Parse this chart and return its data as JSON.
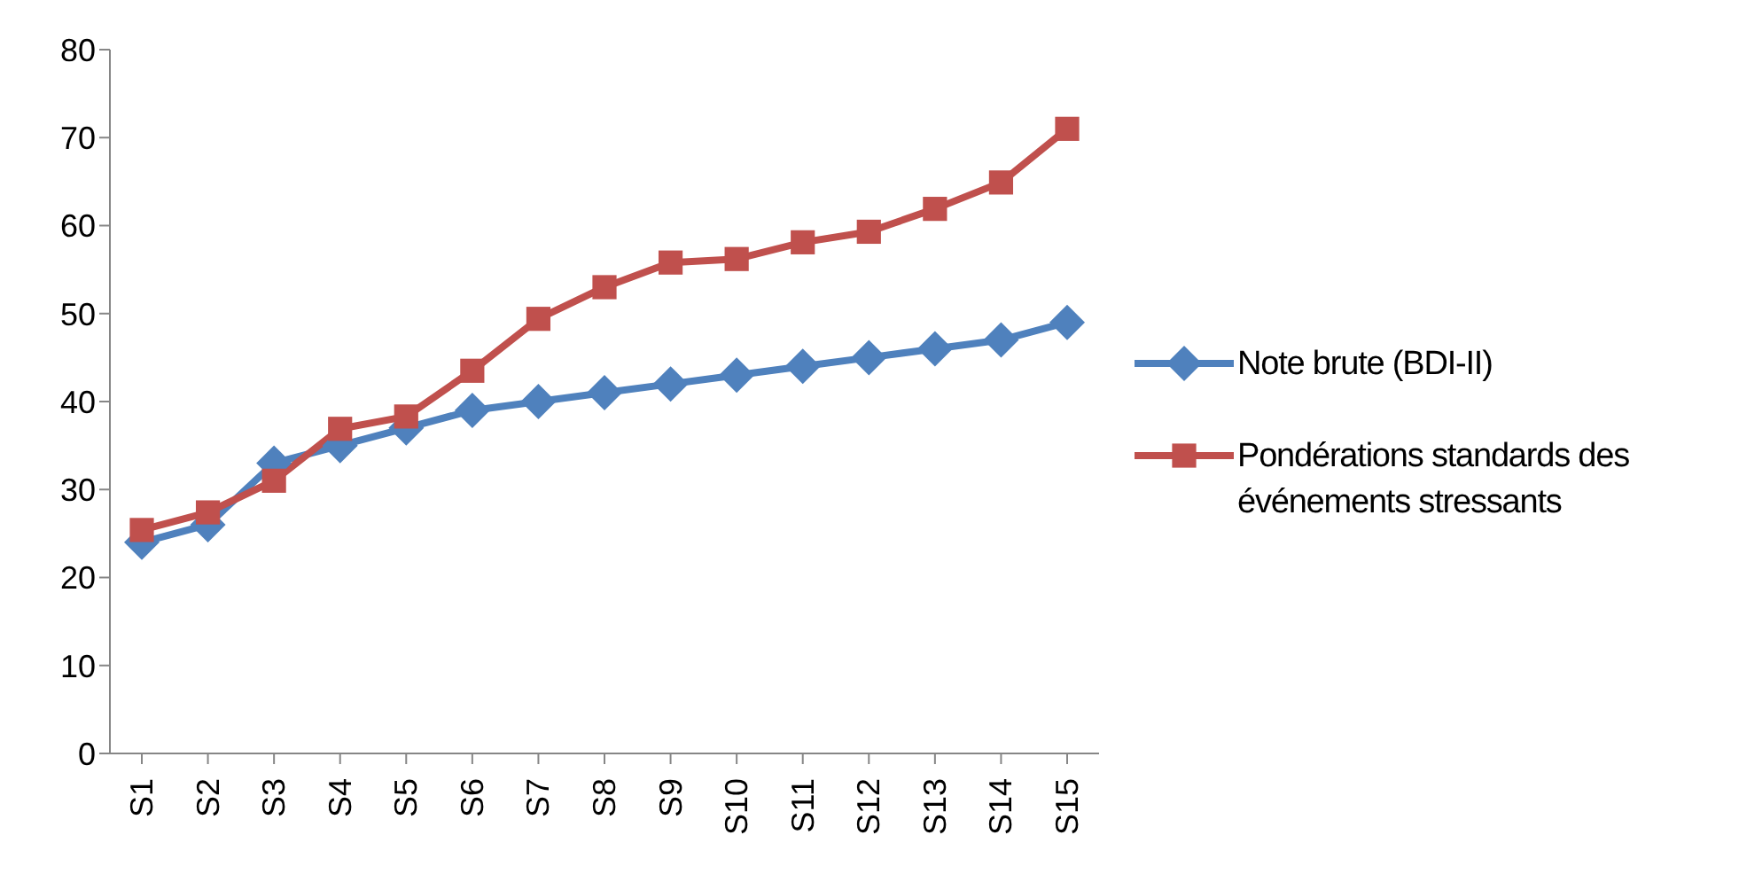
{
  "chart_data": {
    "type": "line",
    "categories": [
      "S1",
      "S2",
      "S3",
      "S4",
      "S5",
      "S6",
      "S7",
      "S8",
      "S9",
      "S10",
      "S11",
      "S12",
      "S13",
      "S14",
      "S15"
    ],
    "series": [
      {
        "name": "Note brute (BDI-II)",
        "color": "#4f81bd",
        "marker": "diamond",
        "values": [
          24,
          26,
          33,
          35,
          37,
          39,
          40,
          41,
          42,
          43,
          44,
          45,
          46,
          47,
          49
        ]
      },
      {
        "name": "Pondérations standards des événements stressants",
        "color": "#c0504d",
        "marker": "square",
        "values": [
          25.4,
          27.4,
          31,
          36.9,
          38.3,
          43.5,
          49.4,
          53,
          55.8,
          56.2,
          58.1,
          59.3,
          61.9,
          64.9,
          71
        ]
      }
    ],
    "ylim": [
      0,
      80
    ],
    "yticks": [
      0,
      10,
      20,
      30,
      40,
      50,
      60,
      70,
      80
    ],
    "grid": false,
    "legend": "right"
  }
}
